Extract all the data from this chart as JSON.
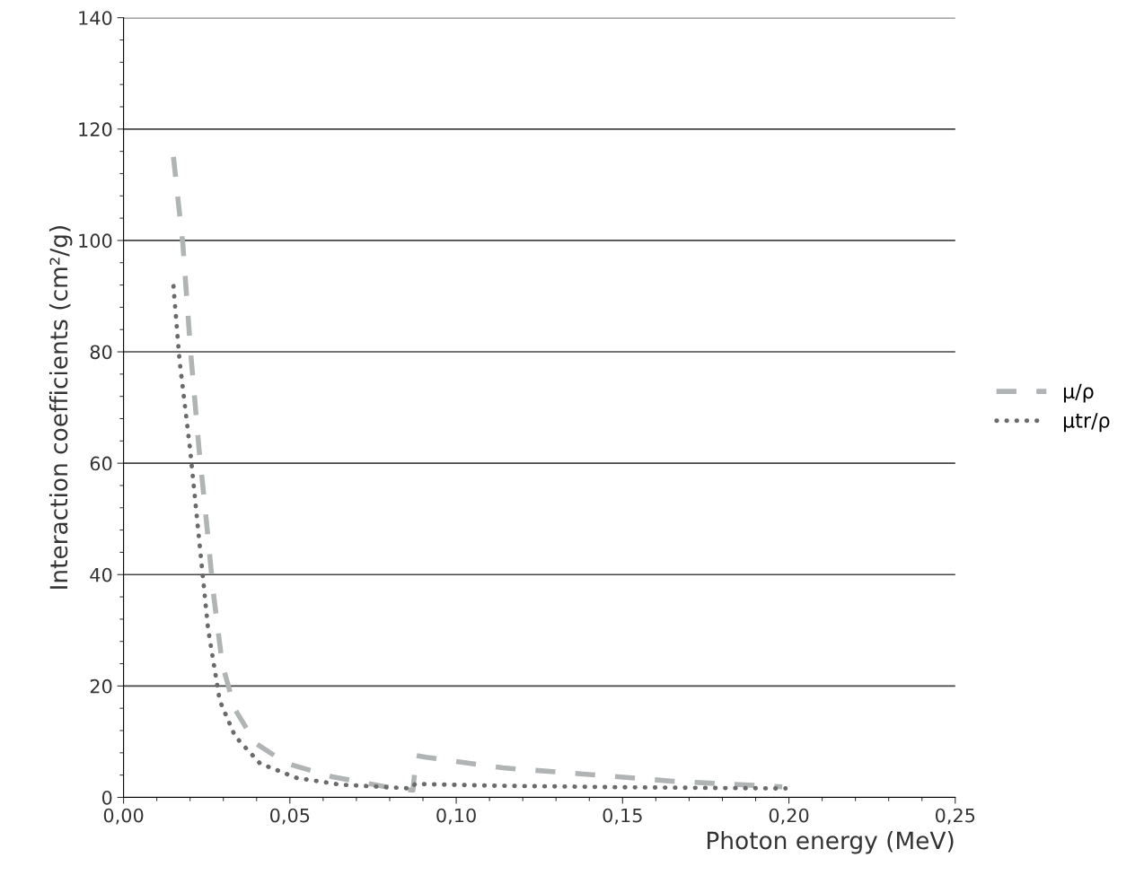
{
  "chart_data": {
    "type": "line",
    "xlabel": "Photon energy (MeV)",
    "ylabel": "Interaction coefficients (cm²/g)",
    "xlim": [
      0,
      0.25
    ],
    "ylim": [
      0,
      140
    ],
    "xticks": [
      {
        "value": 0,
        "label": "0,00"
      },
      {
        "value": 0.05,
        "label": "0,05"
      },
      {
        "value": 0.1,
        "label": "0,10"
      },
      {
        "value": 0.15,
        "label": "0,15"
      },
      {
        "value": 0.2,
        "label": "0,20"
      },
      {
        "value": 0.25,
        "label": "0,25"
      }
    ],
    "yticks": [
      0,
      20,
      40,
      60,
      80,
      100,
      120,
      140
    ],
    "grid": "y",
    "legend": "right",
    "series": [
      {
        "name": "μ/ρ",
        "color": "#b0b4b4",
        "line_style": "dashed",
        "x": [
          0.015,
          0.0178,
          0.0203,
          0.0227,
          0.0249,
          0.027,
          0.0297,
          0.0335,
          0.0397,
          0.049,
          0.0627,
          0.0816,
          0.087,
          0.088,
          0.091,
          0.114,
          0.138,
          0.165,
          0.198
        ],
        "values": [
          115,
          99.5,
          79,
          62.5,
          49.6,
          36.7,
          23.8,
          15.8,
          9.7,
          6.1,
          3.7,
          1.6,
          1.3,
          7.5,
          7.2,
          5.3,
          4.2,
          2.9,
          1.9
        ]
      },
      {
        "name": "μtr/ρ",
        "color": "#6a6a6a",
        "line_style": "dotted",
        "x": [
          0.015,
          0.0168,
          0.02,
          0.0227,
          0.0254,
          0.0289,
          0.0335,
          0.041,
          0.052,
          0.065,
          0.0865,
          0.0876,
          0.111,
          0.152,
          0.199
        ],
        "values": [
          91.8,
          78.6,
          62.5,
          46.4,
          30.3,
          17.4,
          11.0,
          6.1,
          3.5,
          2.3,
          1.6,
          2.4,
          2.1,
          1.8,
          1.6
        ]
      }
    ]
  }
}
